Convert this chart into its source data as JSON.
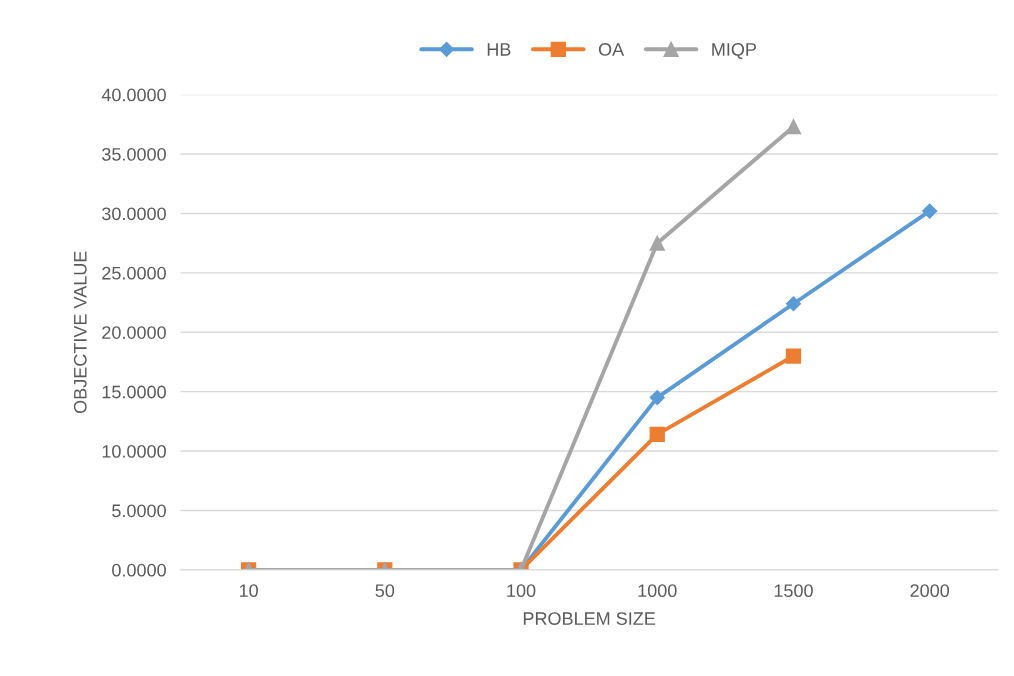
{
  "chart_data": {
    "type": "line",
    "xlabel": "PROBLEM SIZE",
    "ylabel": "OBJECTIVE VALUE",
    "categories": [
      "10",
      "50",
      "100",
      "1000",
      "1500",
      "2000"
    ],
    "series": [
      {
        "name": "HB",
        "color": "#5b9bd5",
        "marker": "diamond",
        "values": [
          0,
          0,
          0,
          14.5,
          22.4,
          30.2
        ]
      },
      {
        "name": "OA",
        "color": "#ed7d31",
        "marker": "square",
        "values": [
          0,
          0,
          0,
          11.4,
          18.0,
          null
        ]
      },
      {
        "name": "MIQP",
        "color": "#a5a5a5",
        "marker": "triangle",
        "values": [
          0,
          0,
          0,
          27.5,
          37.3,
          null
        ]
      }
    ],
    "ylim": [
      0,
      40
    ],
    "yticks": [
      {
        "value": 0,
        "label": "0.0000"
      },
      {
        "value": 5,
        "label": "5.0000"
      },
      {
        "value": 10,
        "label": "10.0000"
      },
      {
        "value": 15,
        "label": "15.0000"
      },
      {
        "value": 20,
        "label": "20.0000"
      },
      {
        "value": 25,
        "label": "25.0000"
      },
      {
        "value": 30,
        "label": "30.0000"
      },
      {
        "value": 35,
        "label": "35.0000"
      },
      {
        "value": 40,
        "label": "40.0000"
      }
    ],
    "grid": "y",
    "legend": "top",
    "line_style": "solid"
  }
}
